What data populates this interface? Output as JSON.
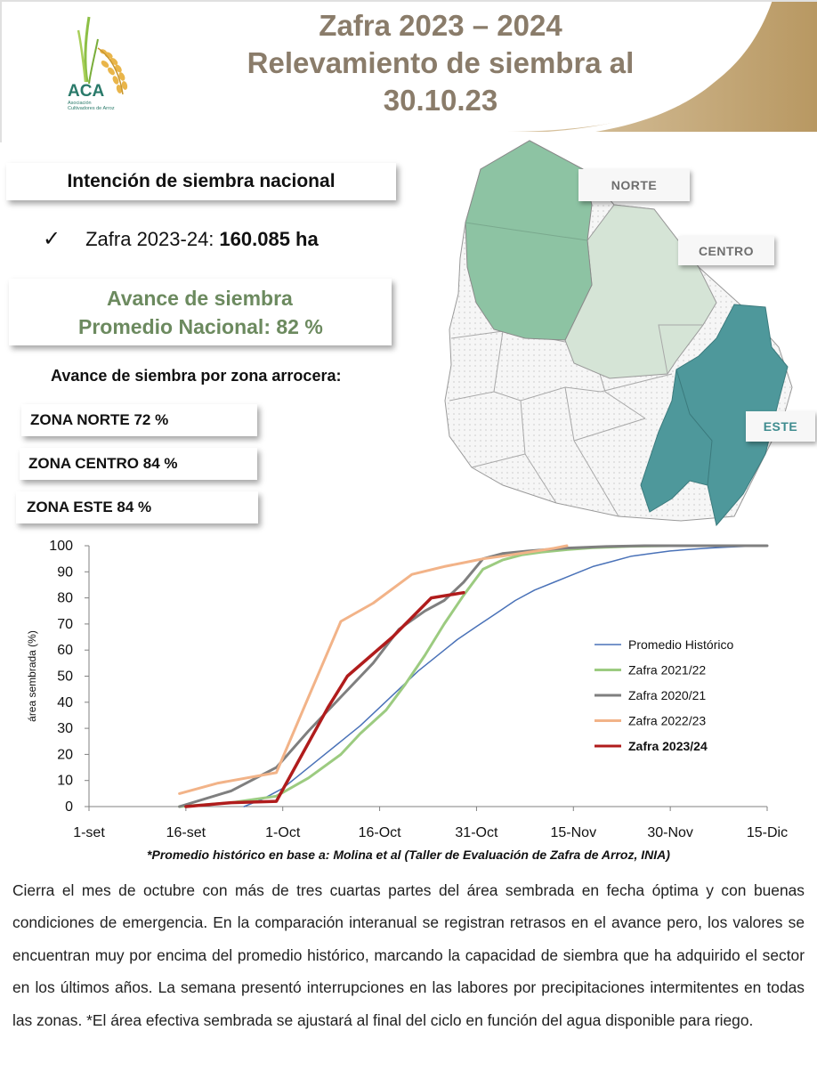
{
  "header": {
    "title_lines": [
      "Zafra 2023 – 2024",
      "Relevamiento de siembra al",
      "30.10.23"
    ],
    "logo_text": "ACA",
    "logo_subtext": [
      "Asociación",
      "Cultivadores de Arroz"
    ]
  },
  "intent": {
    "title": "Intención de siembra nacional",
    "check": "✓",
    "zafra_label": "Zafra 2023-24:",
    "zafra_value": "160.085 ha"
  },
  "avance": {
    "line1": "Avance de siembra",
    "line2": "Promedio Nacional:  82 %"
  },
  "zones": {
    "heading": "Avance de siembra por zona arrocera:",
    "items": [
      "ZONA NORTE  72 %",
      "ZONA CENTRO 84 %",
      "ZONA ESTE  84 %"
    ]
  },
  "map": {
    "labels": {
      "norte": "NORTE",
      "centro": "CENTRO",
      "este": "ESTE"
    },
    "colors": {
      "norte": "#8dc3a3",
      "centro": "#d5e4d6",
      "este": "#4e989b",
      "other": "#f4f4f4"
    }
  },
  "chart_data": {
    "type": "line",
    "title": "",
    "xlabel": "",
    "ylabel": "área sembrada (%)",
    "x_unit": "days since 1-set",
    "xlim": [
      0,
      105
    ],
    "ylim": [
      0,
      100
    ],
    "yticks": [
      0,
      10,
      20,
      30,
      40,
      50,
      60,
      70,
      80,
      90,
      100
    ],
    "xticks": [
      {
        "x": 0,
        "label": "1-set"
      },
      {
        "x": 15,
        "label": "16-set"
      },
      {
        "x": 30,
        "label": "1-Oct"
      },
      {
        "x": 45,
        "label": "16-Oct"
      },
      {
        "x": 60,
        "label": "31-Oct"
      },
      {
        "x": 75,
        "label": "15-Nov"
      },
      {
        "x": 90,
        "label": "30-Nov"
      },
      {
        "x": 105,
        "label": "15-Dic"
      }
    ],
    "legend_position": "right",
    "series": [
      {
        "name": "Promedio Histórico",
        "color": "#4a72b8",
        "width": 1.5,
        "bold": false,
        "x": [
          24,
          27,
          30,
          33,
          36,
          39,
          42,
          45,
          48,
          51,
          54,
          57,
          60,
          63,
          66,
          69,
          72,
          75,
          78,
          81,
          84,
          87,
          90,
          93,
          96,
          99,
          102,
          105
        ],
        "y": [
          0,
          3,
          7,
          13,
          19,
          25,
          31,
          38,
          45,
          52,
          58,
          64,
          69,
          74,
          79,
          83,
          86,
          89,
          92,
          94,
          96,
          97,
          98,
          98.6,
          99.1,
          99.5,
          99.8,
          100
        ]
      },
      {
        "name": "Zafra 2021/22",
        "color": "#9ccb80",
        "width": 3,
        "bold": false,
        "x": [
          14,
          22,
          29,
          34,
          39,
          42,
          46,
          49,
          52,
          55,
          58,
          61,
          64,
          67,
          70,
          74,
          78,
          84,
          90,
          96
        ],
        "y": [
          0,
          1.5,
          4,
          11,
          20,
          28,
          37,
          47,
          58,
          70,
          81,
          91,
          94.5,
          96.5,
          97.5,
          98.5,
          99.2,
          99.8,
          100,
          100
        ]
      },
      {
        "name": "Zafra 2020/21",
        "color": "#7f7f7f",
        "width": 3,
        "bold": false,
        "x": [
          14,
          22,
          29,
          34,
          39,
          44,
          48,
          52,
          55,
          58,
          61,
          64,
          68,
          74,
          80,
          86,
          92,
          105
        ],
        "y": [
          0,
          6,
          15,
          29,
          42,
          55,
          68,
          75,
          79,
          86,
          95,
          97,
          98,
          99.1,
          99.7,
          100,
          100,
          100
        ]
      },
      {
        "name": "Zafra 2022/23",
        "color": "#f2b388",
        "width": 3,
        "bold": false,
        "x": [
          14,
          20,
          29,
          34,
          39,
          44,
          50,
          55,
          59,
          61,
          64,
          68,
          72,
          74
        ],
        "y": [
          5,
          9,
          13,
          42,
          71,
          78,
          89,
          92,
          94,
          95,
          96,
          97.5,
          99,
          100
        ]
      },
      {
        "name": "Zafra 2023/24",
        "color": "#b01c1c",
        "width": 3.5,
        "bold": true,
        "x": [
          15,
          22,
          29,
          33,
          37,
          40,
          47,
          53,
          58
        ],
        "y": [
          0,
          1.5,
          2,
          20,
          38,
          50,
          65,
          80,
          82
        ]
      }
    ]
  },
  "footnote": "*Promedio histórico en base a: Molina et al (Taller de Evaluación de Zafra de Arroz, INIA)",
  "paragraph": "Cierra el mes de octubre con más de tres cuartas partes del área sembrada en fecha óptima y con buenas condiciones de emergencia. En la comparación interanual se registran retrasos en el avance pero, los valores se encuentran muy por encima del promedio histórico, marcando la capacidad de siembra que ha adquirido el sector en los últimos años. La semana presentó interrupciones en las labores por precipitaciones intermitentes en todas las zonas. *El área efectiva sembrada se ajustará al final del ciclo en función del agua disponible para riego."
}
